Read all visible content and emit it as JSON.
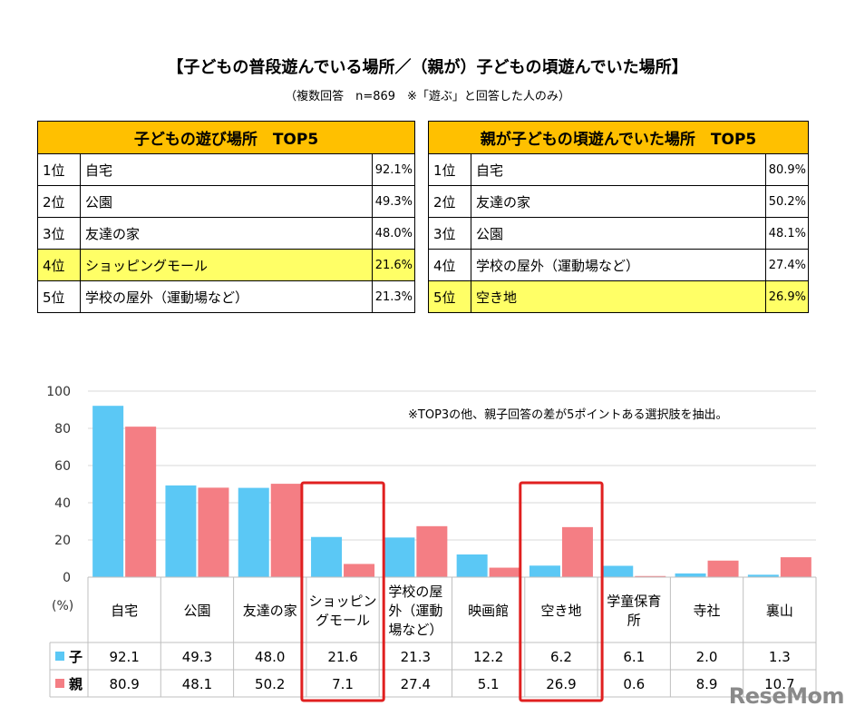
{
  "title": "【子どもの普段遊んでいる場所／（親が）子どもの頃遊んでいた場所】",
  "subtitle": "（複数回答　n=869　※「遊ぶ」と回答した人のみ）",
  "tables": [
    {
      "header": "子どもの遊び場所　TOP5",
      "rows": [
        {
          "rank": "1位",
          "place": "自宅",
          "pct": "92.1%"
        },
        {
          "rank": "2位",
          "place": "公園",
          "pct": "49.3%"
        },
        {
          "rank": "3位",
          "place": "友達の家",
          "pct": "48.0%"
        },
        {
          "rank": "4位",
          "place": "ショッピングモール",
          "pct": "21.6%"
        },
        {
          "rank": "5位",
          "place": "学校の屋外（運動場など）",
          "pct": "21.3%"
        }
      ],
      "highlight_row": 4
    },
    {
      "header": "親が子どもの頃遊んでいた場所　TOP5",
      "rows": [
        {
          "rank": "1位",
          "place": "自宅",
          "pct": "80.9%"
        },
        {
          "rank": "2位",
          "place": "友達の家",
          "pct": "50.2%"
        },
        {
          "rank": "3位",
          "place": "公園",
          "pct": "48.1%"
        },
        {
          "rank": "4位",
          "place": "学校の屋外（運動場など）",
          "pct": "27.4%"
        },
        {
          "rank": "5位",
          "place": "空き地",
          "pct": "26.9%"
        }
      ],
      "highlight_row": 5
    }
  ],
  "chart_note": "※TOP3の他、親子回答の差が5ポイントある選択肢を抽出。",
  "watermark": "ReseMom",
  "chart_data": {
    "type": "bar",
    "ylabel": "(%)",
    "ylim": [
      0,
      100
    ],
    "yticks": [
      "0",
      "20",
      "40",
      "60",
      "80",
      "100"
    ],
    "grid": true,
    "categories": [
      [
        "自宅"
      ],
      [
        "公園"
      ],
      [
        "友達の家"
      ],
      [
        "ショッピン",
        "グモール"
      ],
      [
        "学校の屋",
        "外（運動",
        "場など）"
      ],
      [
        "映画館"
      ],
      [
        "空き地"
      ],
      [
        "学童保育",
        "所"
      ],
      [
        "寺社"
      ],
      [
        "裏山"
      ]
    ],
    "series": [
      {
        "name": "子",
        "color": "#5bc8f5",
        "values": [
          92.1,
          49.3,
          48.0,
          21.6,
          21.3,
          12.2,
          6.2,
          6.1,
          2.0,
          1.3
        ],
        "labels": [
          "92.1",
          "49.3",
          "48.0",
          "21.6",
          "21.3",
          "12.2",
          "6.2",
          "6.1",
          "2.0",
          "1.3"
        ]
      },
      {
        "name": "親",
        "color": "#f47e84",
        "values": [
          80.9,
          48.1,
          50.2,
          7.1,
          27.4,
          5.1,
          26.9,
          0.6,
          8.9,
          10.7
        ],
        "labels": [
          "80.9",
          "48.1",
          "50.2",
          "7.1",
          "27.4",
          "5.1",
          "26.9",
          "0.6",
          "8.9",
          "10.7"
        ]
      }
    ],
    "highlighted_categories": [
      3,
      6
    ],
    "highlight_color": "#e02020"
  }
}
